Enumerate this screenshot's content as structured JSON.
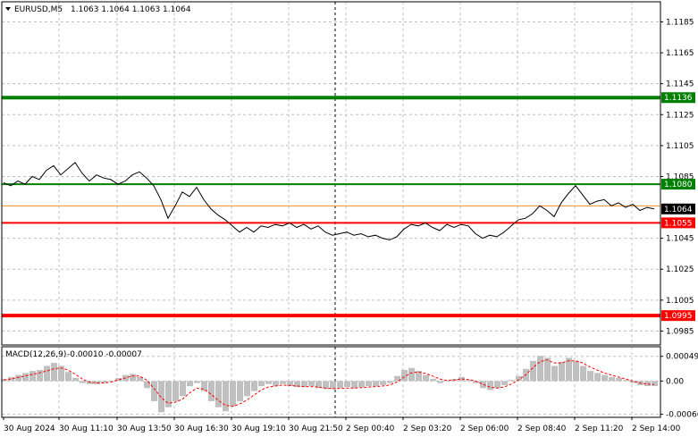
{
  "header": {
    "symbol": "EURUSD,M5",
    "ohlc": "1.1063 1.1064 1.1063 1.1064"
  },
  "macd_header": {
    "label": "MACD(12,26,9)",
    "values": "-0.00010 -0.00007"
  },
  "colors": {
    "price_line": "#000000",
    "grid": "#c0c0c0",
    "green": "#008000",
    "red": "#ff0000",
    "orange": "#e8902a",
    "hist": "#c0c0c0",
    "signal": "#ff0000",
    "bid_box": "#000000"
  },
  "chart_data": [
    {
      "type": "line",
      "title": "",
      "ylim": [
        1.0976,
        1.1198
      ],
      "y_ticks": [
        "1.1185",
        "1.1165",
        "1.1145",
        "1.1125",
        "1.1105",
        "1.1085",
        "1.1045",
        "1.1025",
        "1.1005",
        "1.0985"
      ],
      "x_ticks": [
        "30 Aug 2024",
        "30 Aug 11:10",
        "30 Aug 13:50",
        "30 Aug 16:30",
        "30 Aug 19:10",
        "30 Aug 21:50",
        "2 Sep 00:40",
        "2 Sep 03:20",
        "2 Sep 06:00",
        "2 Sep 08:40",
        "2 Sep 11:20",
        "2 Sep 14:00"
      ],
      "levels": [
        {
          "value": 1.1136,
          "label": "1.1136",
          "color": "#008000",
          "thick": true
        },
        {
          "value": 1.108,
          "label": "1.1080",
          "color": "#008000",
          "thick": false
        },
        {
          "value": 1.1064,
          "label": "1.1064",
          "color": "#000000",
          "thick": false,
          "kind": "bid"
        },
        {
          "value": 1.1055,
          "label": "1.1055",
          "color": "#ff0000",
          "thick": false
        },
        {
          "value": 1.0995,
          "label": "1.0995",
          "color": "#ff0000",
          "thick": true
        }
      ],
      "orange_level": 1.1066,
      "series": [
        {
          "x": [
            0,
            8,
            16,
            24,
            32,
            40,
            48,
            56,
            64,
            72,
            80,
            88,
            96,
            104,
            112,
            120,
            128,
            136,
            144,
            152,
            160,
            168,
            176,
            184,
            192,
            200,
            208,
            216,
            224,
            232,
            240,
            248,
            256,
            264,
            272,
            280,
            288,
            296,
            304,
            312,
            320,
            328,
            336,
            344,
            352,
            360,
            368,
            376,
            384,
            392,
            400,
            408,
            416,
            424,
            432,
            440,
            448,
            456,
            464,
            472,
            480,
            488,
            496,
            504,
            512,
            520,
            528,
            536,
            544,
            552,
            560,
            568,
            576,
            584,
            592,
            600,
            608,
            616,
            624,
            632,
            640,
            648,
            656,
            664,
            672,
            680,
            688,
            696,
            704,
            712,
            720,
            728
          ],
          "values": [
            1.1081,
            1.1079,
            1.1082,
            1.108,
            1.1085,
            1.1083,
            1.1089,
            1.1092,
            1.1086,
            1.109,
            1.1094,
            1.1087,
            1.1082,
            1.1086,
            1.1084,
            1.1083,
            1.108,
            1.1082,
            1.1086,
            1.1088,
            1.1084,
            1.1079,
            1.107,
            1.1058,
            1.1066,
            1.1075,
            1.1072,
            1.1078,
            1.107,
            1.1064,
            1.106,
            1.1057,
            1.1053,
            1.1049,
            1.1052,
            1.1049,
            1.1053,
            1.1052,
            1.1054,
            1.1053,
            1.1055,
            1.1052,
            1.1054,
            1.1051,
            1.1053,
            1.1049,
            1.1047,
            1.1048,
            1.1049,
            1.1047,
            1.1048,
            1.1046,
            1.1047,
            1.1045,
            1.1044,
            1.1046,
            1.1051,
            1.1054,
            1.1053,
            1.1055,
            1.1052,
            1.105,
            1.1054,
            1.1052,
            1.1054,
            1.1053,
            1.1048,
            1.1045,
            1.1047,
            1.1046,
            1.1049,
            1.1053,
            1.1057,
            1.1058,
            1.1061,
            1.1066,
            1.1063,
            1.1059,
            1.1068,
            1.1074,
            1.1079,
            1.1073,
            1.1067,
            1.1069,
            1.107,
            1.1066,
            1.1068,
            1.1065,
            1.1067,
            1.1063,
            1.1065,
            1.1064
          ]
        }
      ]
    },
    {
      "type": "bar",
      "title": "",
      "ylim": [
        -0.00072,
        0.00068
      ],
      "y_ticks": [
        "0.00049",
        "0.00",
        "-0.00066"
      ],
      "series": [
        {
          "values": [
            4e-05,
            8e-05,
            0.00012,
            0.00016,
            0.0002,
            0.00022,
            0.0003,
            0.00036,
            0.0003,
            0.00018,
            6e-05,
            -4e-05,
            -6e-05,
            -6e-05,
            -4e-05,
            0.0,
            6e-05,
            0.00012,
            0.00014,
            8e-05,
            -0.00014,
            -0.0004,
            -0.00062,
            -0.00052,
            -0.0004,
            -0.0003,
            -0.0001,
            -4e-05,
            -0.0002,
            -0.0004,
            -0.00052,
            -0.0006,
            -0.0005,
            -0.0004,
            -0.0003,
            -0.0002,
            -0.0001,
            -6e-05,
            -0.0001,
            -6e-05,
            -0.0001,
            -0.00012,
            -0.00012,
            -0.0001,
            -0.00014,
            -0.00016,
            -0.00016,
            -0.00014,
            -0.00012,
            -0.00014,
            -0.00012,
            -0.0001,
            -0.0001,
            -8e-05,
            -4e-05,
            0.0001,
            0.00022,
            0.00026,
            0.0002,
            0.00012,
            4e-05,
            -4e-05,
            0.0,
            4e-05,
            8e-05,
            2e-05,
            -4e-05,
            -0.00014,
            -0.00018,
            -0.00014,
            -8e-05,
            2e-05,
            0.0001,
            0.00024,
            0.0004,
            0.0005,
            0.00046,
            0.0003,
            0.00038,
            0.00046,
            0.0004,
            0.0003,
            0.0002,
            0.00016,
            0.00012,
            8e-05,
            6e-05,
            2e-05,
            -4e-05,
            -8e-05,
            -0.0001,
            -0.0001
          ]
        },
        {
          "values": [
            2e-05,
            4e-05,
            7e-05,
            0.0001,
            0.00013,
            0.00016,
            0.0002,
            0.00024,
            0.00026,
            0.00022,
            0.00014,
            4e-05,
            -2e-05,
            -4e-05,
            -4e-05,
            -2e-05,
            2e-05,
            6e-05,
            0.0001,
            0.0001,
            2e-05,
            -0.00014,
            -0.00032,
            -0.00044,
            -0.00042,
            -0.00036,
            -0.00024,
            -0.00014,
            -0.00016,
            -0.00026,
            -0.00038,
            -0.00048,
            -0.0005,
            -0.00046,
            -0.00038,
            -0.00028,
            -0.00018,
            -0.00012,
            -0.0001,
            -8e-05,
            -9e-05,
            -0.0001,
            -0.00011,
            -0.00011,
            -0.00012,
            -0.00014,
            -0.00015,
            -0.00015,
            -0.00014,
            -0.00014,
            -0.00013,
            -0.00012,
            -0.00011,
            -0.0001,
            -8e-05,
            -2e-05,
            8e-05,
            0.00016,
            0.00018,
            0.00015,
            0.0001,
            4e-05,
            1e-05,
            2e-05,
            4e-05,
            3e-05,
            0.0,
            -6e-05,
            -0.00012,
            -0.00014,
            -0.00012,
            -6e-05,
            2e-05,
            0.00012,
            0.00026,
            0.00038,
            0.00042,
            0.00036,
            0.00036,
            0.0004,
            0.0004,
            0.00036,
            0.00028,
            0.00022,
            0.00016,
            0.00012,
            8e-05,
            4e-05,
            0.0,
            -4e-05,
            -6e-05,
            -7e-05
          ]
        }
      ]
    }
  ]
}
